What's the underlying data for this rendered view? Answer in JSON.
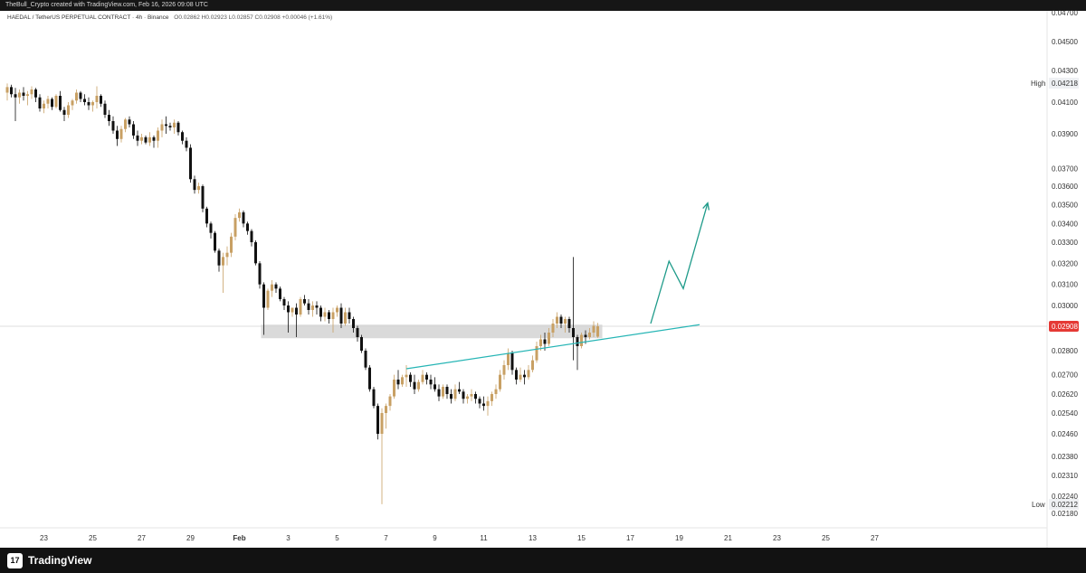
{
  "top_bar": {
    "text": "TheBull_Crypto created with TradingView.com, Feb 16, 2026 09:08 UTC"
  },
  "header": {
    "symbol": "HAEDAL / TetherUS PERPETUAL CONTRACT · 4h · Binance",
    "ohlc": "O0.02862 H0.02923 L0.02857 C0.02908 +0.00046 (+1.61%)"
  },
  "footer": {
    "logo_glyph": "17",
    "brand": "TradingView"
  },
  "colors": {
    "up": "#c8a064",
    "down": "#111111",
    "trend": "#26b5b5",
    "arrow": "#1f9b8a",
    "zone": "#d3d3d3",
    "price_tag": "#e53935",
    "axis_line": "#e6e6e6"
  },
  "chart_data": {
    "type": "candlestick",
    "title": "",
    "x_ticks": [
      {
        "label": "23",
        "i": 9
      },
      {
        "label": "25",
        "i": 21
      },
      {
        "label": "27",
        "i": 33
      },
      {
        "label": "29",
        "i": 45
      },
      {
        "label": "Feb",
        "i": 57,
        "bold": true
      },
      {
        "label": "3",
        "i": 69
      },
      {
        "label": "5",
        "i": 81
      },
      {
        "label": "7",
        "i": 93
      },
      {
        "label": "9",
        "i": 105
      },
      {
        "label": "11",
        "i": 117
      },
      {
        "label": "13",
        "i": 129
      },
      {
        "label": "15",
        "i": 141
      },
      {
        "label": "17",
        "i": 153
      },
      {
        "label": "19",
        "i": 165
      },
      {
        "label": "21",
        "i": 177
      },
      {
        "label": "23",
        "i": 189
      },
      {
        "label": "25",
        "i": 201
      },
      {
        "label": "27",
        "i": 213
      }
    ],
    "y_ticks": [
      "0.04700",
      "0.04500",
      "0.04300",
      "0.04100",
      "0.03900",
      "0.03700",
      "0.03600",
      "0.03500",
      "0.03400",
      "0.03300",
      "0.03200",
      "0.03100",
      "0.03000",
      "0.02800",
      "0.02700",
      "0.02620",
      "0.02540",
      "0.02460",
      "0.02380",
      "0.02310",
      "0.02240",
      "0.02180"
    ],
    "high": {
      "label": "High",
      "value": "0.04218"
    },
    "low": {
      "label": "Low",
      "value": "0.02212"
    },
    "last_price": "0.02908",
    "support_zone": {
      "i_start": 63,
      "y_top": 0.02915,
      "y_bottom": 0.02855
    },
    "trendline": {
      "i_start": 98,
      "y_start": 0.02725,
      "i_end": 170,
      "y_end": 0.02915
    },
    "projection": [
      [
        158,
        0.0292
      ],
      [
        162.5,
        0.0321
      ],
      [
        166,
        0.0308
      ],
      [
        172,
        0.0351
      ]
    ],
    "candles": [
      [
        0.0416,
        0.04218,
        0.0411,
        0.04195
      ],
      [
        0.04195,
        0.0421,
        0.0413,
        0.0415
      ],
      [
        0.0415,
        0.0419,
        0.0398,
        0.0413
      ],
      [
        0.0413,
        0.0418,
        0.0409,
        0.0416
      ],
      [
        0.0416,
        0.04195,
        0.0411,
        0.0414
      ],
      [
        0.0414,
        0.0417,
        0.0408,
        0.0415
      ],
      [
        0.0415,
        0.042,
        0.0412,
        0.0418
      ],
      [
        0.0418,
        0.0419,
        0.041,
        0.0413
      ],
      [
        0.0413,
        0.0415,
        0.0404,
        0.0406
      ],
      [
        0.0406,
        0.0411,
        0.0403,
        0.0409
      ],
      [
        0.0409,
        0.0414,
        0.0406,
        0.0412
      ],
      [
        0.0412,
        0.0413,
        0.0405,
        0.0407
      ],
      [
        0.0407,
        0.0415,
        0.0406,
        0.0414
      ],
      [
        0.0414,
        0.0417,
        0.0404,
        0.0405
      ],
      [
        0.0405,
        0.0407,
        0.0398,
        0.0402
      ],
      [
        0.0402,
        0.041,
        0.04,
        0.0408
      ],
      [
        0.0408,
        0.0412,
        0.0405,
        0.0411
      ],
      [
        0.0411,
        0.0418,
        0.0409,
        0.0416
      ],
      [
        0.0416,
        0.0417,
        0.041,
        0.0412
      ],
      [
        0.0412,
        0.0415,
        0.0408,
        0.041
      ],
      [
        0.041,
        0.0413,
        0.0405,
        0.0408
      ],
      [
        0.0408,
        0.0411,
        0.0404,
        0.041
      ],
      [
        0.041,
        0.042,
        0.0406,
        0.0414
      ],
      [
        0.0414,
        0.0415,
        0.0407,
        0.0409
      ],
      [
        0.0409,
        0.0411,
        0.04,
        0.0402
      ],
      [
        0.0402,
        0.0405,
        0.0395,
        0.0398
      ],
      [
        0.0398,
        0.0401,
        0.039,
        0.0392
      ],
      [
        0.0392,
        0.0395,
        0.0383,
        0.0387
      ],
      [
        0.0387,
        0.0395,
        0.0385,
        0.0393
      ],
      [
        0.0393,
        0.04,
        0.0391,
        0.0399
      ],
      [
        0.0399,
        0.0401,
        0.0394,
        0.0396
      ],
      [
        0.0396,
        0.0398,
        0.0387,
        0.0389
      ],
      [
        0.0389,
        0.0392,
        0.0383,
        0.0386
      ],
      [
        0.0386,
        0.039,
        0.0384,
        0.0388
      ],
      [
        0.0388,
        0.0389,
        0.0384,
        0.0385
      ],
      [
        0.0385,
        0.0391,
        0.0383,
        0.0388
      ],
      [
        0.0388,
        0.0389,
        0.0382,
        0.0386
      ],
      [
        0.0386,
        0.0394,
        0.0382,
        0.0392
      ],
      [
        0.0392,
        0.0399,
        0.0388,
        0.0396
      ],
      [
        0.0396,
        0.0401,
        0.039,
        0.0395
      ],
      [
        0.0395,
        0.0397,
        0.0392,
        0.0394
      ],
      [
        0.0394,
        0.0399,
        0.039,
        0.0397
      ],
      [
        0.0397,
        0.0398,
        0.0389,
        0.0391
      ],
      [
        0.0391,
        0.0392,
        0.0384,
        0.0386
      ],
      [
        0.0386,
        0.0388,
        0.038,
        0.0382
      ],
      [
        0.0382,
        0.0384,
        0.0362,
        0.0364
      ],
      [
        0.0364,
        0.0366,
        0.0356,
        0.0358
      ],
      [
        0.0358,
        0.0362,
        0.0356,
        0.036
      ],
      [
        0.036,
        0.0361,
        0.0346,
        0.0348
      ],
      [
        0.0348,
        0.0349,
        0.0338,
        0.034
      ],
      [
        0.034,
        0.0341,
        0.0332,
        0.0335
      ],
      [
        0.0335,
        0.0336,
        0.0325,
        0.0326
      ],
      [
        0.0326,
        0.0327,
        0.0316,
        0.0319
      ],
      [
        0.0319,
        0.0325,
        0.0306,
        0.0323
      ],
      [
        0.0323,
        0.0328,
        0.0319,
        0.0325
      ],
      [
        0.0325,
        0.0335,
        0.0323,
        0.0333
      ],
      [
        0.0333,
        0.0345,
        0.0331,
        0.0343
      ],
      [
        0.0343,
        0.0348,
        0.0341,
        0.0346
      ],
      [
        0.0346,
        0.0347,
        0.0338,
        0.034
      ],
      [
        0.034,
        0.0341,
        0.0334,
        0.0336
      ],
      [
        0.0336,
        0.0337,
        0.0328,
        0.033
      ],
      [
        0.033,
        0.0331,
        0.0319,
        0.032
      ],
      [
        0.032,
        0.0321,
        0.0308,
        0.031
      ],
      [
        0.031,
        0.0311,
        0.0287,
        0.0299
      ],
      [
        0.0299,
        0.0308,
        0.0298,
        0.0307
      ],
      [
        0.0307,
        0.0312,
        0.0304,
        0.031
      ],
      [
        0.031,
        0.0311,
        0.0306,
        0.0308
      ],
      [
        0.0308,
        0.0309,
        0.0302,
        0.0303
      ],
      [
        0.0303,
        0.0304,
        0.0298,
        0.03
      ],
      [
        0.03,
        0.0302,
        0.0288,
        0.0297
      ],
      [
        0.0297,
        0.0299,
        0.0295,
        0.0299
      ],
      [
        0.0299,
        0.0301,
        0.0286,
        0.0296
      ],
      [
        0.0296,
        0.0304,
        0.0295,
        0.0303
      ],
      [
        0.0303,
        0.0305,
        0.03,
        0.0301
      ],
      [
        0.0301,
        0.0303,
        0.0296,
        0.0298
      ],
      [
        0.0298,
        0.0302,
        0.0295,
        0.03
      ],
      [
        0.03,
        0.0302,
        0.0296,
        0.0299
      ],
      [
        0.0299,
        0.03,
        0.0293,
        0.0295
      ],
      [
        0.0295,
        0.0299,
        0.0293,
        0.0297
      ],
      [
        0.0297,
        0.0298,
        0.0292,
        0.0294
      ],
      [
        0.0294,
        0.0299,
        0.0288,
        0.0297
      ],
      [
        0.0297,
        0.03,
        0.0295,
        0.0299
      ],
      [
        0.0299,
        0.0301,
        0.029,
        0.0292
      ],
      [
        0.0292,
        0.0299,
        0.0291,
        0.0297
      ],
      [
        0.0297,
        0.0299,
        0.0292,
        0.0294
      ],
      [
        0.0294,
        0.0295,
        0.0288,
        0.029
      ],
      [
        0.029,
        0.0291,
        0.0284,
        0.0286
      ],
      [
        0.0286,
        0.0287,
        0.0279,
        0.028
      ],
      [
        0.028,
        0.0281,
        0.0272,
        0.0273
      ],
      [
        0.0273,
        0.0274,
        0.0263,
        0.0264
      ],
      [
        0.0264,
        0.0265,
        0.0256,
        0.0257
      ],
      [
        0.0257,
        0.0258,
        0.0244,
        0.0246
      ],
      [
        0.0246,
        0.0256,
        0.02212,
        0.0254
      ],
      [
        0.0254,
        0.0258,
        0.0248,
        0.0257
      ],
      [
        0.0257,
        0.0262,
        0.0255,
        0.0261
      ],
      [
        0.0261,
        0.027,
        0.026,
        0.0268
      ],
      [
        0.0268,
        0.0272,
        0.0264,
        0.0266
      ],
      [
        0.0266,
        0.027,
        0.0265,
        0.0269
      ],
      [
        0.0269,
        0.0274,
        0.0265,
        0.027
      ],
      [
        0.027,
        0.0271,
        0.0265,
        0.0267
      ],
      [
        0.0267,
        0.027,
        0.0262,
        0.0264
      ],
      [
        0.0264,
        0.0268,
        0.0263,
        0.0267
      ],
      [
        0.0267,
        0.0272,
        0.0266,
        0.027
      ],
      [
        0.027,
        0.0271,
        0.0266,
        0.0268
      ],
      [
        0.0268,
        0.027,
        0.0264,
        0.0266
      ],
      [
        0.0266,
        0.0269,
        0.0263,
        0.0264
      ],
      [
        0.0264,
        0.0266,
        0.0259,
        0.0261
      ],
      [
        0.0261,
        0.0266,
        0.026,
        0.0265
      ],
      [
        0.0265,
        0.0266,
        0.026,
        0.0262
      ],
      [
        0.0262,
        0.0264,
        0.0258,
        0.026
      ],
      [
        0.026,
        0.0266,
        0.0259,
        0.0264
      ],
      [
        0.0264,
        0.0267,
        0.0262,
        0.0263
      ],
      [
        0.0263,
        0.0264,
        0.0258,
        0.026
      ],
      [
        0.026,
        0.0262,
        0.0258,
        0.0261
      ],
      [
        0.0261,
        0.0264,
        0.0259,
        0.0262
      ],
      [
        0.0262,
        0.0263,
        0.0258,
        0.026
      ],
      [
        0.026,
        0.0261,
        0.0256,
        0.0258
      ],
      [
        0.0258,
        0.0261,
        0.0255,
        0.0257
      ],
      [
        0.0257,
        0.0261,
        0.0253,
        0.0259
      ],
      [
        0.0259,
        0.0263,
        0.0257,
        0.0262
      ],
      [
        0.0262,
        0.0266,
        0.026,
        0.0264
      ],
      [
        0.0264,
        0.0272,
        0.0263,
        0.027
      ],
      [
        0.027,
        0.0276,
        0.0268,
        0.0274
      ],
      [
        0.0274,
        0.0281,
        0.0272,
        0.0279
      ],
      [
        0.0279,
        0.028,
        0.027,
        0.0272
      ],
      [
        0.0272,
        0.0273,
        0.0266,
        0.0268
      ],
      [
        0.0268,
        0.0273,
        0.0267,
        0.027
      ],
      [
        0.027,
        0.0272,
        0.0266,
        0.0269
      ],
      [
        0.0269,
        0.0274,
        0.0268,
        0.0272
      ],
      [
        0.0272,
        0.0278,
        0.0271,
        0.0276
      ],
      [
        0.0276,
        0.0284,
        0.0275,
        0.0282
      ],
      [
        0.0282,
        0.0287,
        0.028,
        0.0285
      ],
      [
        0.0285,
        0.0288,
        0.028,
        0.0283
      ],
      [
        0.0283,
        0.029,
        0.0282,
        0.0288
      ],
      [
        0.0288,
        0.0294,
        0.0286,
        0.0292
      ],
      [
        0.0292,
        0.0297,
        0.029,
        0.0295
      ],
      [
        0.0295,
        0.0296,
        0.029,
        0.0292
      ],
      [
        0.0292,
        0.0295,
        0.0288,
        0.0294
      ],
      [
        0.0294,
        0.0295,
        0.0288,
        0.029
      ],
      [
        0.029,
        0.0323,
        0.0276,
        0.0286
      ],
      [
        0.0286,
        0.0287,
        0.0272,
        0.0282
      ],
      [
        0.0282,
        0.0288,
        0.0281,
        0.0287
      ],
      [
        0.0287,
        0.0289,
        0.0283,
        0.0286
      ],
      [
        0.0286,
        0.029,
        0.0285,
        0.0288
      ],
      [
        0.0288,
        0.0293,
        0.0286,
        0.0291
      ],
      [
        0.02862,
        0.02923,
        0.02857,
        0.02908
      ]
    ]
  }
}
